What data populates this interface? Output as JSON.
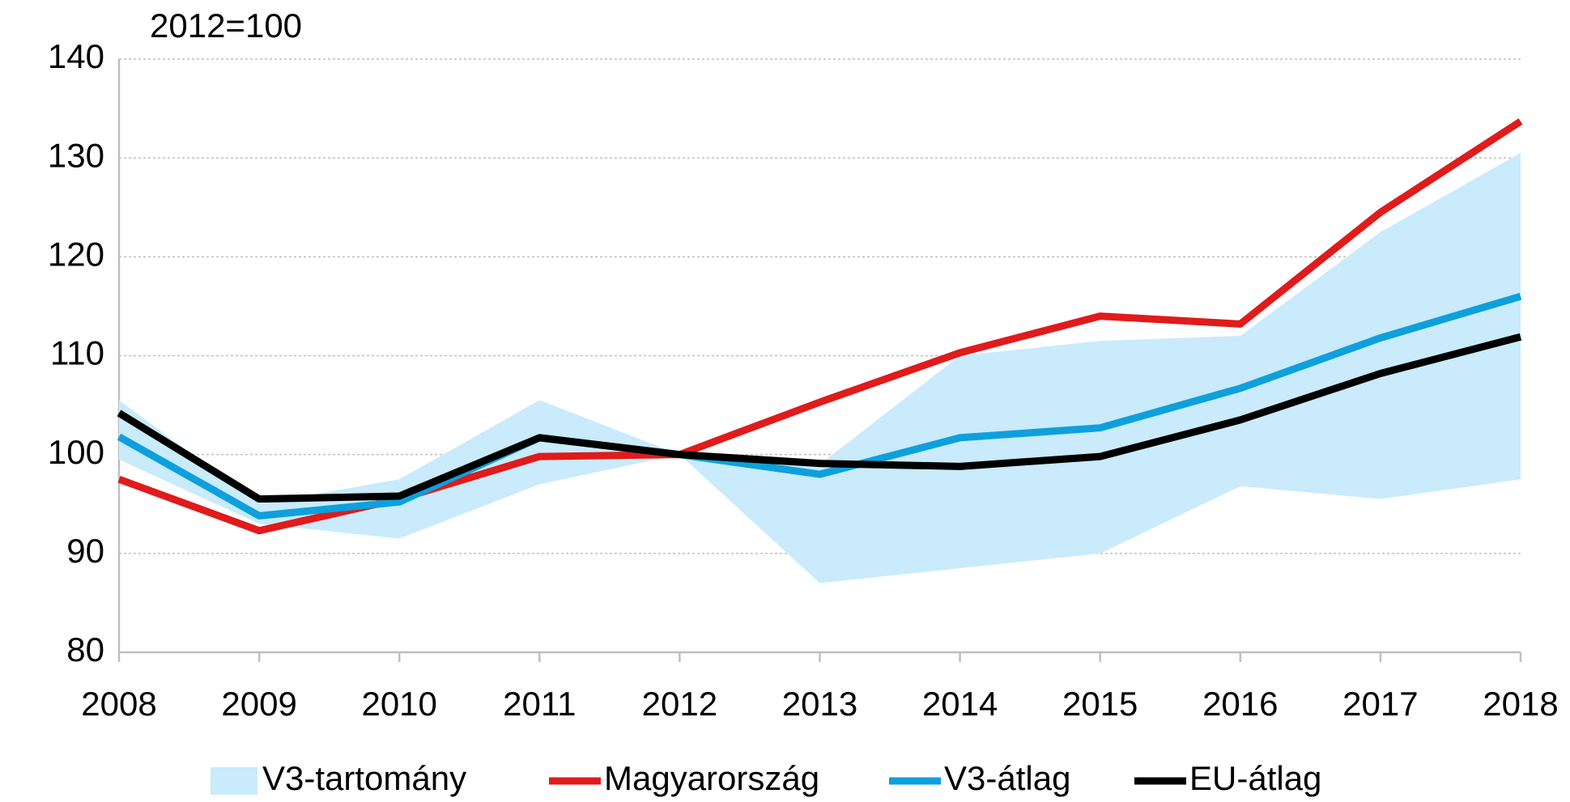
{
  "chart_data": {
    "type": "line",
    "subtitle": "2012=100",
    "x": [
      2008,
      2009,
      2010,
      2011,
      2012,
      2013,
      2014,
      2015,
      2016,
      2017,
      2018
    ],
    "xlim": [
      2008,
      2018
    ],
    "xticks": [
      2008,
      2009,
      2010,
      2011,
      2012,
      2013,
      2014,
      2015,
      2016,
      2017,
      2018
    ],
    "ylim": [
      80,
      140
    ],
    "yticks": [
      80,
      90,
      100,
      110,
      120,
      130,
      140
    ],
    "grid": true,
    "legend": "bottom",
    "band": {
      "name": "V3-tartomány",
      "color": "#c9ebfb",
      "lower": [
        99.5,
        93,
        91.5,
        97,
        100,
        87,
        88.5,
        90,
        96.8,
        95.5,
        97.5
      ],
      "upper": [
        105.5,
        95,
        97.5,
        105.5,
        100,
        99,
        110,
        111.5,
        112,
        122.5,
        130.5
      ]
    },
    "series": [
      {
        "name": "Magyarország",
        "color": "#e01b1b",
        "values": [
          97.5,
          92.3,
          95.5,
          99.8,
          100,
          105.3,
          110.3,
          114,
          113.2,
          124.5,
          133.7
        ]
      },
      {
        "name": "V3-átlag",
        "color": "#0ea0dc",
        "values": [
          101.8,
          93.8,
          95.2,
          101.7,
          100,
          98,
          101.7,
          102.7,
          106.7,
          111.8,
          116
        ]
      },
      {
        "name": "EU-átlag",
        "color": "#000000",
        "values": [
          104.2,
          95.5,
          95.8,
          101.7,
          100,
          99.1,
          98.8,
          99.8,
          103.5,
          108.2,
          111.9
        ]
      }
    ]
  }
}
